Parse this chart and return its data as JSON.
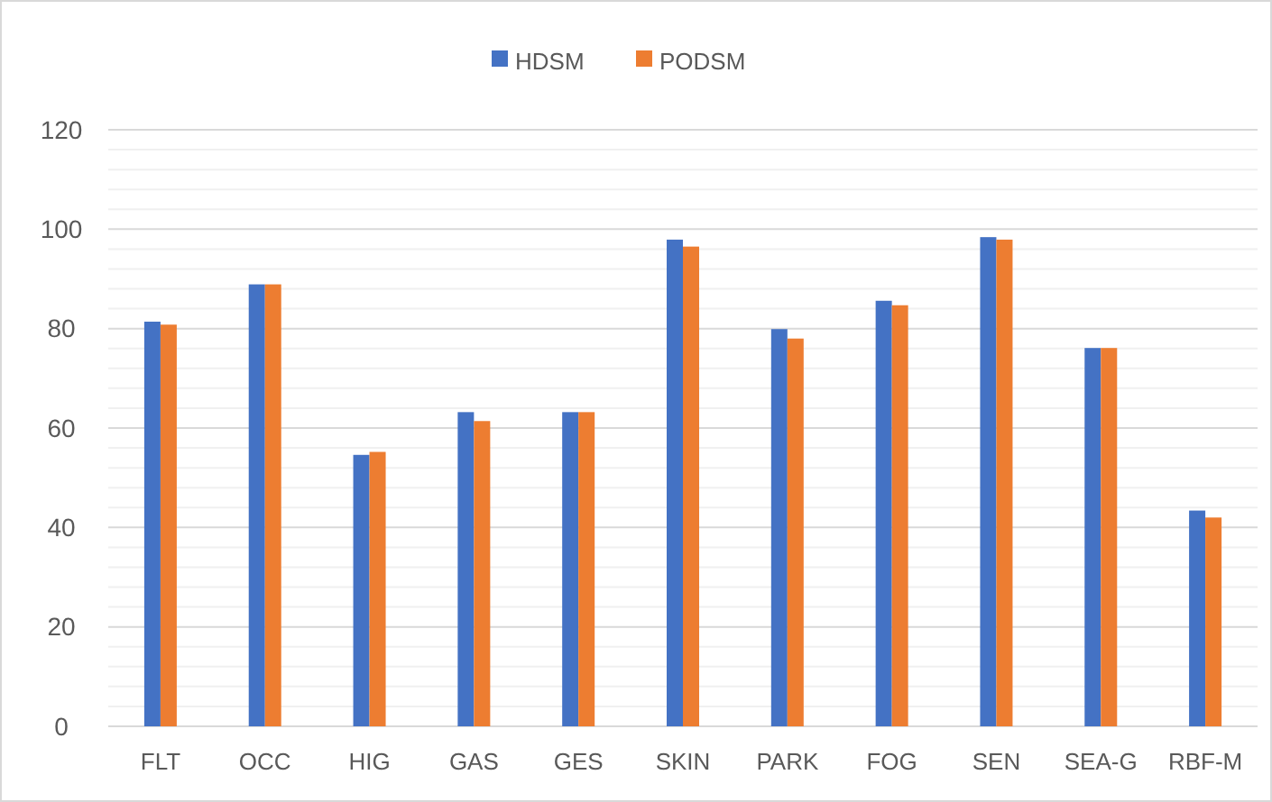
{
  "chart_data": {
    "type": "bar",
    "categories": [
      "FLT",
      "OCC",
      "HIG",
      "GAS",
      "GES",
      "SKIN",
      "PARK",
      "FOG",
      "SEN",
      "SEA-G",
      "RBF-M"
    ],
    "series": [
      {
        "name": "HDSM",
        "color": "#4472c4",
        "values": [
          81.4,
          88.9,
          54.6,
          63.2,
          63.2,
          97.9,
          79.9,
          85.6,
          98.4,
          76.1,
          43.4
        ]
      },
      {
        "name": "PODSM",
        "color": "#ed7d31",
        "values": [
          80.8,
          88.9,
          55.2,
          61.4,
          63.2,
          96.5,
          78.0,
          84.7,
          97.9,
          76.1,
          42.0
        ]
      }
    ],
    "ylim": [
      0,
      120
    ],
    "yticks": [
      0,
      {
        "value": 4,
        "label": null
      },
      {
        "value": 8,
        "label": null
      },
      {
        "value": 12,
        "label": null
      },
      {
        "value": 16,
        "label": null
      },
      20,
      {
        "value": 24,
        "label": null
      },
      {
        "value": 28,
        "label": null
      },
      {
        "value": 32,
        "label": null
      },
      {
        "value": 36,
        "label": null
      },
      40,
      {
        "value": 44,
        "label": null
      },
      {
        "value": 48,
        "label": null
      },
      {
        "value": 52,
        "label": null
      },
      {
        "value": 56,
        "label": null
      },
      60,
      {
        "value": 64,
        "label": null
      },
      {
        "value": 68,
        "label": null
      },
      {
        "value": 72,
        "label": null
      },
      {
        "value": 76,
        "label": null
      },
      80,
      {
        "value": 84,
        "label": null
      },
      {
        "value": 88,
        "label": null
      },
      {
        "value": 92,
        "label": null
      },
      {
        "value": 96,
        "label": null
      },
      100,
      {
        "value": 104,
        "label": null
      },
      {
        "value": 108,
        "label": null
      },
      {
        "value": 112,
        "label": null
      },
      {
        "value": 116,
        "label": null
      },
      120
    ],
    "grid": true,
    "legend": "top"
  }
}
